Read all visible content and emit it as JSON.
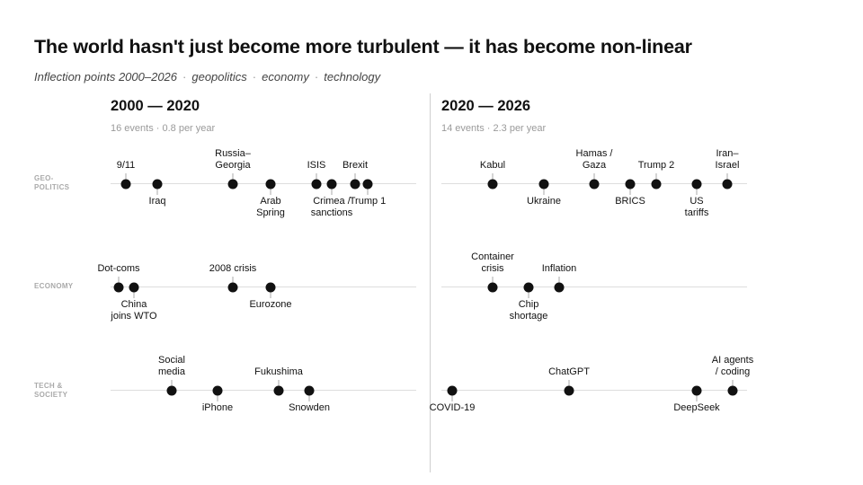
{
  "title": "The world hasn't just become more turbulent — it has become non-linear",
  "subtitle": {
    "lead": "Inflection points 2000–2026",
    "tags": [
      "geopolitics",
      "economy",
      "technology"
    ]
  },
  "rows": [
    {
      "id": "geo",
      "label_1": "GEO-",
      "label_2": "POLITICS"
    },
    {
      "id": "economy",
      "label_1": "ECONOMY",
      "label_2": ""
    },
    {
      "id": "tech",
      "label_1": "TECH &",
      "label_2": "SOCIETY"
    }
  ],
  "panels": [
    {
      "id": "left",
      "title": "2000 — 2020",
      "stats": "16 events · 0.8 per year"
    },
    {
      "id": "right",
      "title": "2020 — 2026",
      "stats": "14 events · 2.3 per year"
    }
  ],
  "chart_data": {
    "type": "timeline",
    "periods": [
      "2000 — 2020",
      "2020 — 2026"
    ],
    "categories": [
      "GEO-POLITICS",
      "ECONOMY",
      "TECH & SOCIETY"
    ],
    "events": [
      {
        "panel": 0,
        "row": 0,
        "label_1": "9/11",
        "label_2": "",
        "side": "above"
      },
      {
        "panel": 0,
        "row": 0,
        "label_1": "Iraq",
        "label_2": "",
        "side": "below"
      },
      {
        "panel": 0,
        "row": 0,
        "label_1": "Russia–",
        "label_2": "Georgia",
        "side": "above"
      },
      {
        "panel": 0,
        "row": 0,
        "label_1": "Arab",
        "label_2": "Spring",
        "side": "below"
      },
      {
        "panel": 0,
        "row": 0,
        "label_1": "ISIS",
        "label_2": "",
        "side": "above"
      },
      {
        "panel": 0,
        "row": 0,
        "label_1": "Crimea /",
        "label_2": "sanctions",
        "side": "below"
      },
      {
        "panel": 0,
        "row": 0,
        "label_1": "Brexit",
        "label_2": "",
        "side": "above"
      },
      {
        "panel": 0,
        "row": 0,
        "label_1": "Trump 1",
        "label_2": "",
        "side": "below"
      },
      {
        "panel": 0,
        "row": 1,
        "label_1": "Dot-coms",
        "label_2": "",
        "side": "above"
      },
      {
        "panel": 0,
        "row": 1,
        "label_1": "China",
        "label_2": "joins WTO",
        "side": "below"
      },
      {
        "panel": 0,
        "row": 1,
        "label_1": "2008 crisis",
        "label_2": "",
        "side": "above"
      },
      {
        "panel": 0,
        "row": 1,
        "label_1": "Eurozone",
        "label_2": "",
        "side": "below"
      },
      {
        "panel": 0,
        "row": 2,
        "label_1": "Social",
        "label_2": "media",
        "side": "above"
      },
      {
        "panel": 0,
        "row": 2,
        "label_1": "iPhone",
        "label_2": "",
        "side": "below"
      },
      {
        "panel": 0,
        "row": 2,
        "label_1": "Fukushima",
        "label_2": "",
        "side": "above"
      },
      {
        "panel": 0,
        "row": 2,
        "label_1": "Snowden",
        "label_2": "",
        "side": "below"
      },
      {
        "panel": 1,
        "row": 0,
        "label_1": "Kabul",
        "label_2": "",
        "side": "above"
      },
      {
        "panel": 1,
        "row": 0,
        "label_1": "Ukraine",
        "label_2": "",
        "side": "below"
      },
      {
        "panel": 1,
        "row": 0,
        "label_1": "Hamas /",
        "label_2": "Gaza",
        "side": "above"
      },
      {
        "panel": 1,
        "row": 0,
        "label_1": "BRICS",
        "label_2": "",
        "side": "below"
      },
      {
        "panel": 1,
        "row": 0,
        "label_1": "Trump 2",
        "label_2": "",
        "side": "above"
      },
      {
        "panel": 1,
        "row": 0,
        "label_1": "US",
        "label_2": "tariffs",
        "side": "below"
      },
      {
        "panel": 1,
        "row": 0,
        "label_1": "Iran–",
        "label_2": "Israel",
        "side": "above"
      },
      {
        "panel": 1,
        "row": 1,
        "label_1": "Container",
        "label_2": "crisis",
        "side": "above"
      },
      {
        "panel": 1,
        "row": 1,
        "label_1": "Chip",
        "label_2": "shortage",
        "side": "below"
      },
      {
        "panel": 1,
        "row": 1,
        "label_1": "Inflation",
        "label_2": "",
        "side": "above"
      },
      {
        "panel": 1,
        "row": 2,
        "label_1": "COVID-19",
        "label_2": "",
        "side": "below"
      },
      {
        "panel": 1,
        "row": 2,
        "label_1": "ChatGPT",
        "label_2": "",
        "side": "above"
      },
      {
        "panel": 1,
        "row": 2,
        "label_1": "DeepSeek",
        "label_2": "",
        "side": "below"
      },
      {
        "panel": 1,
        "row": 2,
        "label_1": "AI agents",
        "label_2": "/ coding",
        "side": "above"
      }
    ]
  }
}
